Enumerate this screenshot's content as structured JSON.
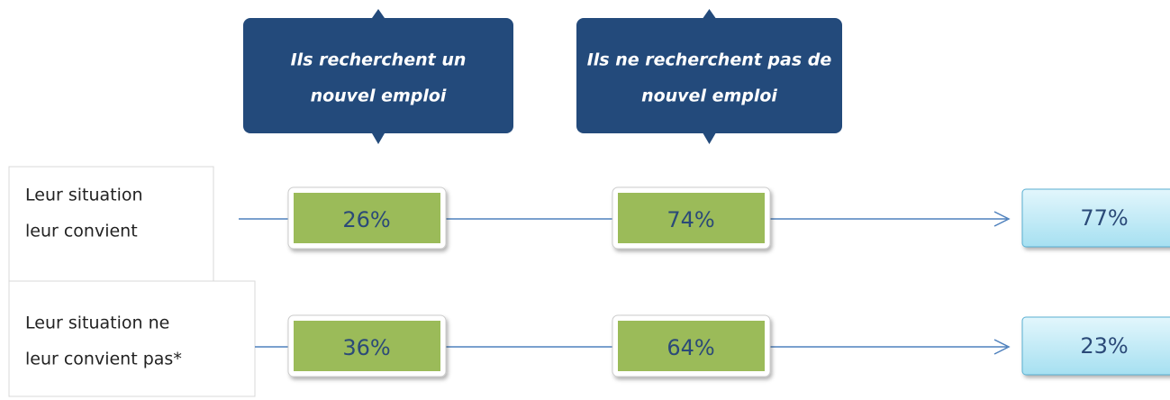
{
  "headers": [
    [
      "Ils recherchent un",
      "nouvel emploi"
    ],
    [
      "Ils ne recherchent pas de",
      "nouvel emploi"
    ]
  ],
  "rows": [
    {
      "label": [
        "Leur situation",
        "leur convient"
      ],
      "values": [
        "26%",
        "74%"
      ],
      "total": "77%"
    },
    {
      "label": [
        "Leur situation ne",
        "leur convient pas*"
      ],
      "values": [
        "36%",
        "64%"
      ],
      "total": "23%"
    }
  ]
}
